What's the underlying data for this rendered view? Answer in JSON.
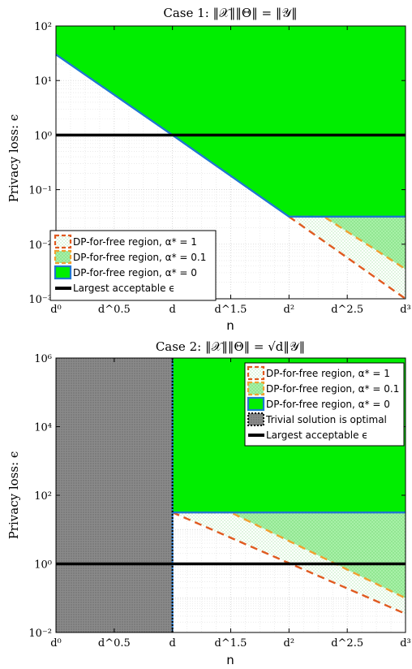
{
  "chart_data": [
    {
      "type": "area",
      "title": "Case 1: ‖𝒳‖‖Θ‖ = ‖𝒴‖",
      "xlabel": "n",
      "ylabel": "Privacy loss: ϵ",
      "x_scale": "log",
      "y_scale": "log",
      "xlim_exponent_of_d": [
        0,
        3
      ],
      "ylim": [
        0.001,
        100
      ],
      "grid": true,
      "x_ticks": [
        "d⁰",
        "d^0.5",
        "d",
        "d^1.5",
        "d²",
        "d^2.5",
        "d³"
      ],
      "y_ticks": [
        "10⁻³",
        "10⁻²",
        "10⁻¹",
        "10⁰",
        "10¹",
        "10²"
      ],
      "legend_position": "bottom-left",
      "legend": [
        "DP-for-free region, α* = 1",
        "DP-for-free region, α* = 0.1",
        "DP-for-free region, α* = 0",
        "Largest acceptable ϵ"
      ],
      "series": [
        {
          "name": "DP-for-free region, α* = 0",
          "boundary_exponent_of_d": [
            0,
            1,
            2,
            3
          ],
          "boundary_eps": [
            30,
            1,
            0.032,
            0.032
          ],
          "fill": "#00ee00",
          "edge": "#1f77d0"
        },
        {
          "name": "DP-for-free region, α* = 0.1",
          "boundary_exponent_of_d": [
            2,
            2.3,
            3
          ],
          "boundary_eps": [
            0.032,
            0.032,
            0.0035
          ],
          "fill": "#99ee99",
          "edge": "#f0a030"
        },
        {
          "name": "DP-for-free region, α* = 1",
          "boundary_exponent_of_d": [
            2,
            3
          ],
          "boundary_eps": [
            0.032,
            0.001
          ],
          "fill": "#ddf5dd",
          "edge": "#e05a20"
        },
        {
          "name": "Largest acceptable ϵ",
          "eps": 1,
          "color": "#000000"
        }
      ]
    },
    {
      "type": "area",
      "title": "Case 2: ‖𝒳‖‖Θ‖ = √d‖𝒴‖",
      "xlabel": "n",
      "ylabel": "Privacy loss: ϵ",
      "x_scale": "log",
      "y_scale": "log",
      "xlim_exponent_of_d": [
        0,
        3
      ],
      "ylim": [
        0.01,
        1000000
      ],
      "grid": true,
      "x_ticks": [
        "d⁰",
        "d^0.5",
        "d",
        "d^1.5",
        "d²",
        "d^2.5",
        "d³"
      ],
      "y_ticks": [
        "10⁻²",
        "10⁰",
        "10²",
        "10⁴",
        "10⁶"
      ],
      "legend_position": "top-right",
      "legend": [
        "DP-for-free region, α* = 1",
        "DP-for-free region, α* = 0.1",
        "DP-for-free region, α* = 0",
        "Trivial solution is optimal",
        "Largest acceptable ϵ"
      ],
      "series": [
        {
          "name": "Trivial solution is optimal",
          "x_range_exponent_of_d": [
            0,
            1
          ],
          "fill": "#808080"
        },
        {
          "name": "DP-for-free region, α* = 0",
          "boundary_exponent_of_d": [
            1,
            3
          ],
          "boundary_eps": [
            31.6,
            31.6
          ],
          "fill": "#00ee00",
          "edge": "#1f77d0"
        },
        {
          "name": "DP-for-free region, α* = 0.1",
          "boundary_exponent_of_d": [
            1,
            1.5,
            3
          ],
          "boundary_eps": [
            31.6,
            31.6,
            0.1
          ],
          "fill": "#99ee99",
          "edge": "#f0a030"
        },
        {
          "name": "DP-for-free region, α* = 1",
          "boundary_exponent_of_d": [
            1,
            3
          ],
          "boundary_eps": [
            31.6,
            0.035
          ],
          "fill": "#ddf5dd",
          "edge": "#e05a20"
        },
        {
          "name": "Largest acceptable ϵ",
          "eps": 1,
          "color": "#000000"
        }
      ]
    }
  ]
}
